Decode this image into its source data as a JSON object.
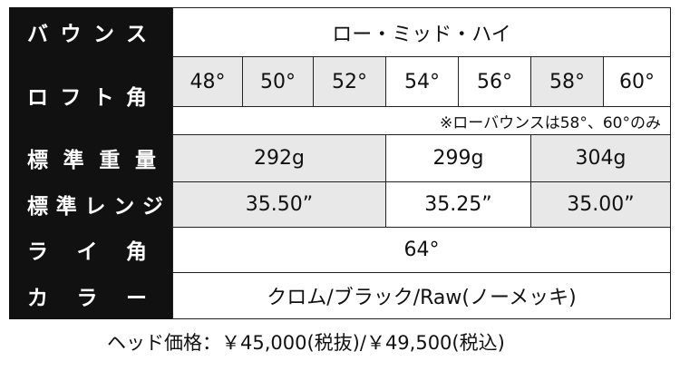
{
  "table": {
    "rows": [
      {
        "label": "バウンス",
        "cells": [
          "ロー・ミッド・ハイ"
        ]
      },
      {
        "label": "ロフト角",
        "cells": [
          "48°",
          "50°",
          "52°",
          "54°",
          "56°",
          "58°",
          "60°"
        ],
        "note": "※ローバウンスは58°、60°のみ"
      },
      {
        "label": "標準重量",
        "cells": [
          "292g",
          "299g",
          "304g"
        ]
      },
      {
        "label": "標準レンジ",
        "cells": [
          "35.50”",
          "35.25”",
          "35.00”"
        ]
      },
      {
        "label": "ライ角",
        "cells": [
          "64°"
        ]
      },
      {
        "label": "カラー",
        "cells": [
          "クロム/ブラック/Raw(ノーメッキ)"
        ]
      }
    ]
  },
  "footer": "ヘッド価格：￥45,000(税抜)/￥49,500(税込)"
}
